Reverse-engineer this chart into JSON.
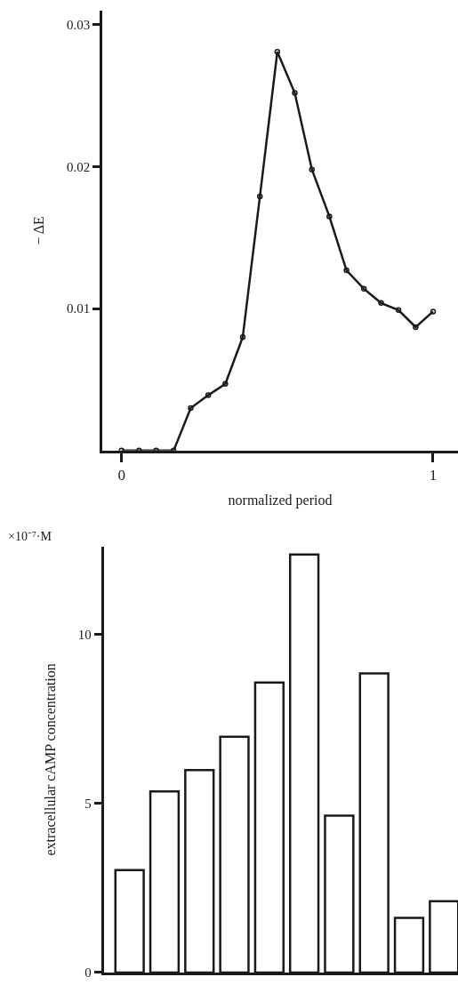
{
  "chart_data": [
    {
      "type": "line",
      "xlabel": "normalized period",
      "ylabel": "− ΔE",
      "x": [
        0,
        0.056,
        0.111,
        0.167,
        0.222,
        0.278,
        0.333,
        0.389,
        0.444,
        0.5,
        0.556,
        0.611,
        0.667,
        0.722,
        0.778,
        0.833,
        0.889,
        0.944,
        1.0
      ],
      "series": [
        {
          "color": "#1a1a1a",
          "values": [
            0,
            0,
            0,
            0,
            0.003,
            0.0039,
            0.0047,
            0.008,
            0.0179,
            0.0281,
            0.0252,
            0.0198,
            0.0165,
            0.0127,
            0.0114,
            0.0104,
            0.0099,
            0.0087,
            0.0098
          ]
        }
      ],
      "xlim": [
        -0.062,
        1.08
      ],
      "xticks": [
        0,
        1
      ],
      "ylim": [
        0,
        0.031
      ],
      "yticks": [
        0.01,
        0.02,
        0.03
      ],
      "marker": "circle",
      "line_style": "solid"
    },
    {
      "type": "bar",
      "ylabel": "extracellular cAMP concentration",
      "annotations": [
        "×10⁻⁷·M"
      ],
      "categories": [
        null,
        null,
        null,
        null,
        null,
        null,
        null,
        null,
        null,
        null
      ],
      "series": [
        {
          "color": "#ffffff",
          "values": [
            3.03,
            5.36,
            5.99,
            6.98,
            8.58,
            12.37,
            4.64,
            8.85,
            1.62,
            2.11
          ]
        }
      ],
      "ylim": [
        0,
        12.6
      ],
      "yticks": [
        0,
        5,
        10
      ],
      "tick_labels": "y"
    }
  ]
}
